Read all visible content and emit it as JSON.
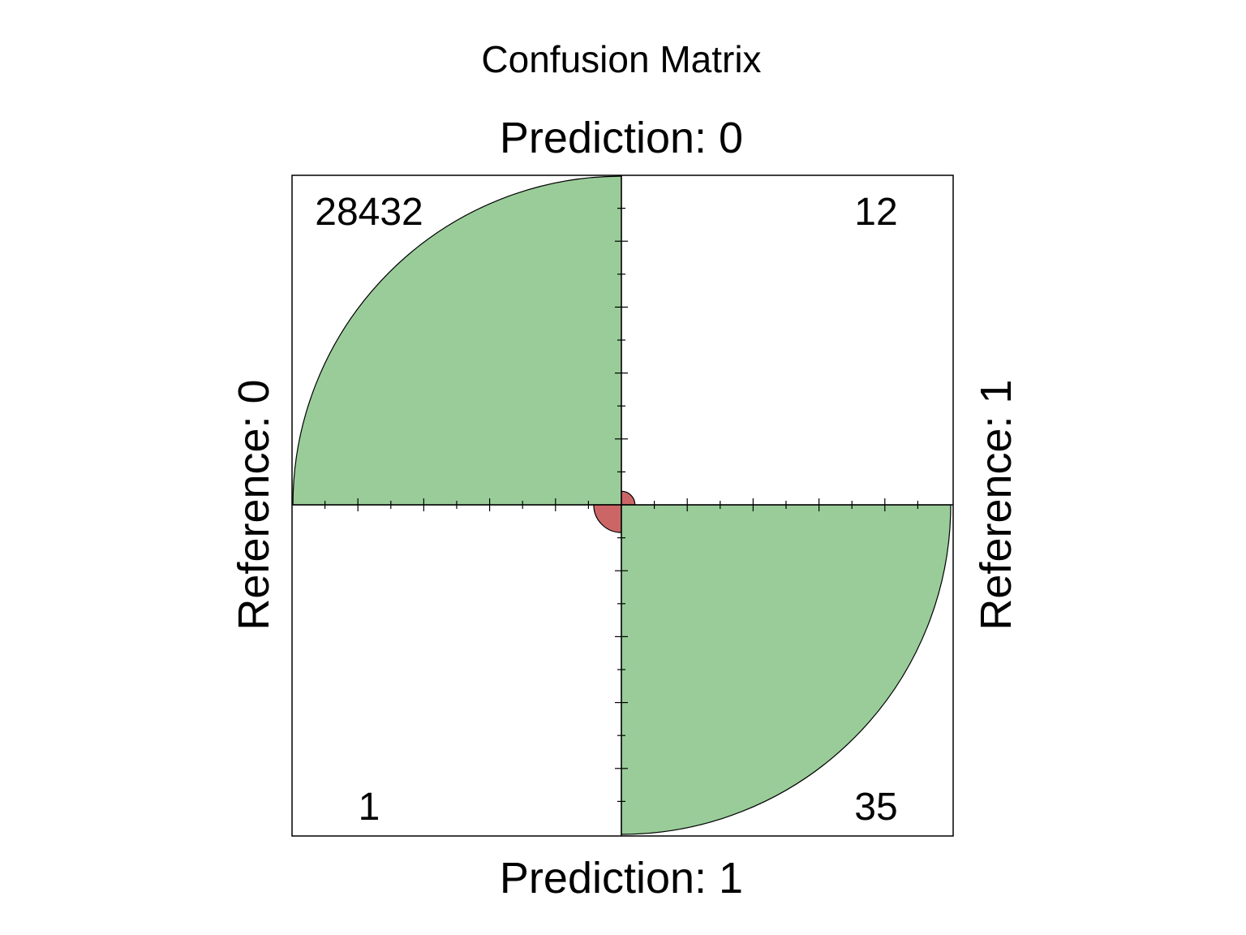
{
  "chart_data": {
    "type": "fourfold",
    "title": "Confusion Matrix",
    "top_label": "Prediction: 0",
    "bottom_label": "Prediction: 1",
    "left_label": "Reference: 0",
    "right_label": "Reference: 1",
    "cells": [
      {
        "prediction": "0",
        "reference": "0",
        "count": 28432,
        "label": "28432",
        "quadrant": "top-left",
        "color": "#99cc99"
      },
      {
        "prediction": "0",
        "reference": "1",
        "count": 12,
        "label": "12",
        "quadrant": "top-right",
        "color": "#cc6666"
      },
      {
        "prediction": "1",
        "reference": "0",
        "count": 1,
        "label": "1",
        "quadrant": "bottom-left",
        "color": "#cc6666"
      },
      {
        "prediction": "1",
        "reference": "1",
        "count": 35,
        "label": "35",
        "quadrant": "bottom-right",
        "color": "#99cc99"
      }
    ],
    "correct_color": "#99cc99",
    "incorrect_color": "#cc6666"
  }
}
